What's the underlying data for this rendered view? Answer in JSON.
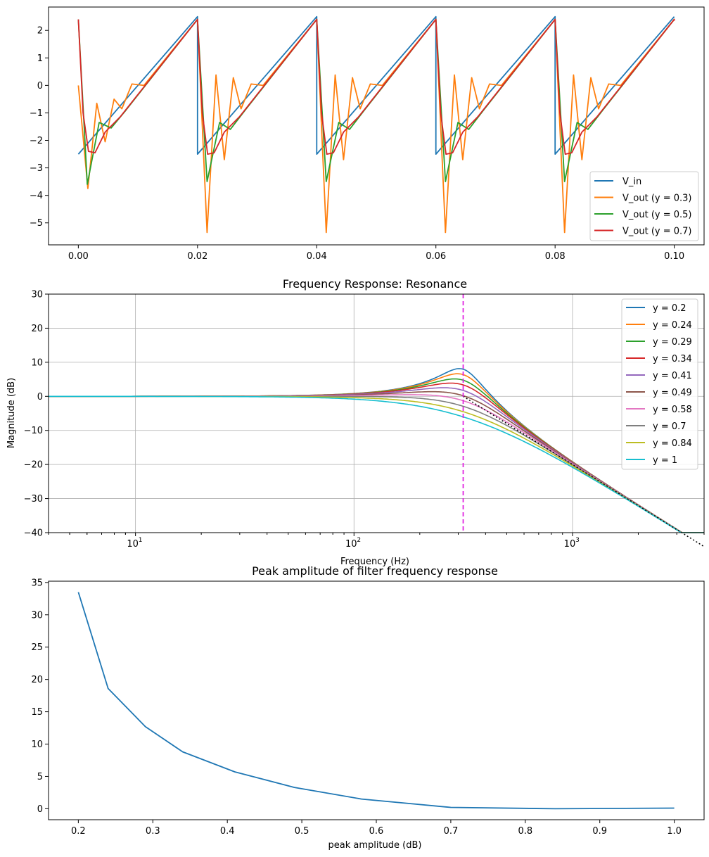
{
  "colors": [
    "#1f77b4",
    "#ff7f0e",
    "#2ca02c",
    "#d62728",
    "#9467bd",
    "#8c564b",
    "#e377c2",
    "#7f7f7f",
    "#bcbd22",
    "#17becf"
  ],
  "chart_data": [
    {
      "type": "line",
      "title": "",
      "xlabel": "",
      "ylabel": "",
      "xlim": [
        -0.005,
        0.105
      ],
      "ylim": [
        -5.8,
        2.85
      ],
      "xticks": [
        "0.00",
        "0.02",
        "0.04",
        "0.06",
        "0.08",
        "0.10"
      ],
      "yticks": [
        "−5",
        "−4",
        "−3",
        "−2",
        "−1",
        "0",
        "1",
        "2"
      ],
      "legend_position": "lower-right",
      "period": 0.02,
      "series": [
        {
          "name": "V_in",
          "x": [
            0,
            0.02,
            0.02,
            0.04,
            0.04,
            0.06,
            0.06,
            0.08,
            0.08,
            0.1
          ],
          "y": [
            -2.5,
            2.5,
            -2.5,
            2.5,
            -2.5,
            2.5,
            -2.5,
            2.5,
            -2.5,
            2.5
          ]
        },
        {
          "name": "V_out (y = 0.3)",
          "x": [
            0,
            0.0016,
            0.0031,
            0.0045,
            0.006,
            0.0073,
            0.009,
            0.011,
            0.02,
            0.0216,
            0.0231,
            0.0245,
            0.026,
            0.0273,
            0.029,
            0.031,
            0.04
          ],
          "y": [
            0.0,
            -3.75,
            -0.65,
            -2.05,
            -0.5,
            -0.85,
            0.05,
            0.0,
            2.4,
            -5.35,
            0.38,
            -2.7,
            0.28,
            -0.85,
            0.05,
            0.0,
            2.4
          ]
        },
        {
          "name": "V_out (y = 0.5)",
          "x": [
            0,
            0.0015,
            0.0035,
            0.0055,
            0.008,
            0.02,
            0.0216,
            0.0237,
            0.0255,
            0.028,
            0.04
          ],
          "y": [
            2.4,
            -3.6,
            -1.35,
            -1.55,
            -0.9,
            2.4,
            -3.5,
            -1.35,
            -1.6,
            -0.9,
            2.4
          ]
        },
        {
          "name": "V_out (y = 0.7)",
          "x": [
            0,
            0.0008,
            0.0017,
            0.0028,
            0.0045,
            0.007,
            0.02,
            0.0208,
            0.0217,
            0.0228,
            0.0245,
            0.027,
            0.04
          ],
          "y": [
            2.4,
            -1.0,
            -2.4,
            -2.45,
            -1.7,
            -1.15,
            2.4,
            -1.0,
            -2.5,
            -2.45,
            -1.7,
            -1.15,
            2.4
          ]
        }
      ]
    },
    {
      "type": "line",
      "title": "Frequency Response: Resonance",
      "xlabel": "Frequency (Hz)",
      "ylabel": "Magnitude (dB)",
      "xscale": "log",
      "xlim": [
        4,
        4000
      ],
      "ylim": [
        -40,
        30
      ],
      "yticks": [
        "−40",
        "−30",
        "−20",
        "−10",
        "0",
        "10",
        "20",
        "30"
      ],
      "grid": true,
      "legend_position": "upper-right",
      "cutoff_frequency_hz": 316,
      "series": [
        {
          "name": "y = 0.2",
          "gamma": 0.2
        },
        {
          "name": "y = 0.24",
          "gamma": 0.24
        },
        {
          "name": "y = 0.29",
          "gamma": 0.29
        },
        {
          "name": "y = 0.34",
          "gamma": 0.34
        },
        {
          "name": "y = 0.41",
          "gamma": 0.41
        },
        {
          "name": "y = 0.49",
          "gamma": 0.49
        },
        {
          "name": "y = 0.58",
          "gamma": 0.58
        },
        {
          "name": "y = 0.7",
          "gamma": 0.7
        },
        {
          "name": "y = 0.84",
          "gamma": 0.84
        },
        {
          "name": "y = 1",
          "gamma": 1.0
        }
      ]
    },
    {
      "type": "line",
      "title": "Peak amplitude of filter frequency response",
      "xlabel": "peak amplitude (dB)",
      "ylabel": "",
      "xlim": [
        0.16,
        1.04
      ],
      "ylim": [
        -1.7,
        35.2
      ],
      "xticks": [
        "0.2",
        "0.3",
        "0.4",
        "0.5",
        "0.6",
        "0.7",
        "0.8",
        "0.9",
        "1.0"
      ],
      "yticks": [
        "0",
        "5",
        "10",
        "15",
        "20",
        "25",
        "30",
        "35"
      ],
      "series": [
        {
          "name": "",
          "x": [
            0.2,
            0.24,
            0.29,
            0.34,
            0.41,
            0.49,
            0.58,
            0.7,
            0.84,
            1.0
          ],
          "y": [
            33.5,
            18.6,
            12.7,
            8.8,
            5.7,
            3.3,
            1.5,
            0.2,
            0.0,
            0.1
          ]
        }
      ]
    }
  ]
}
